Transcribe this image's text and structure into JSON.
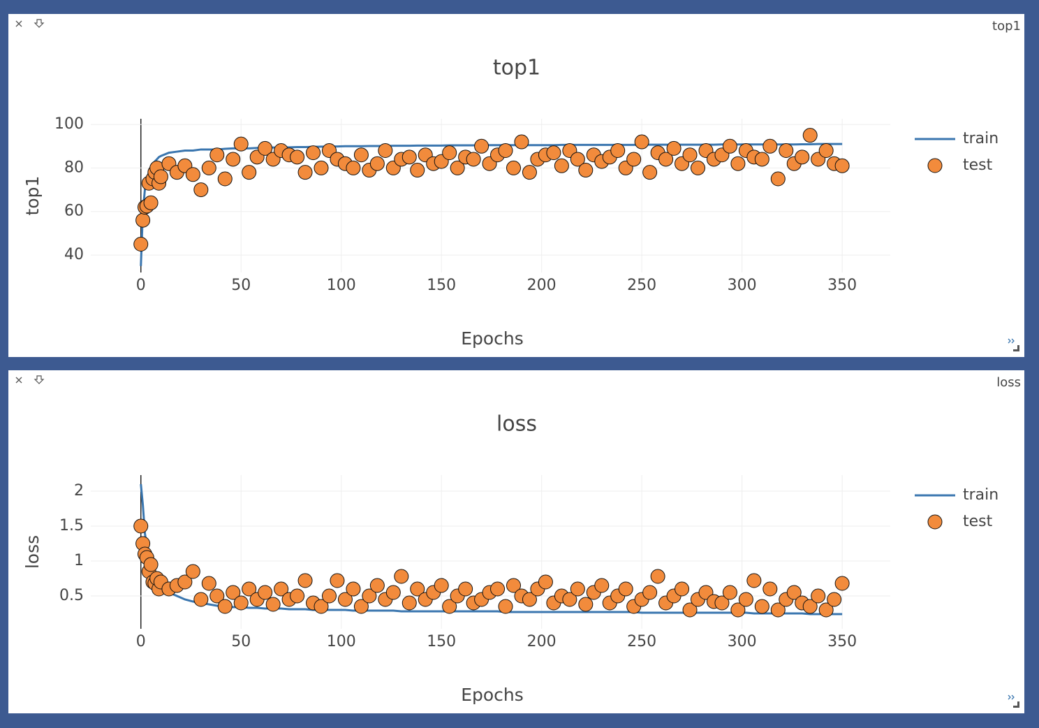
{
  "chart_data": [
    {
      "type": "line",
      "window_title": "top1",
      "title": "top1",
      "x_label": "Epochs",
      "y_label": "top1",
      "x": [
        0,
        1,
        2,
        3,
        4,
        5,
        6,
        7,
        8,
        9,
        10,
        14,
        18,
        22,
        26,
        30,
        34,
        38,
        42,
        46,
        50,
        54,
        58,
        62,
        66,
        70,
        74,
        78,
        82,
        86,
        90,
        94,
        98,
        102,
        106,
        110,
        114,
        118,
        122,
        126,
        130,
        134,
        138,
        142,
        146,
        150,
        154,
        158,
        162,
        166,
        170,
        174,
        178,
        182,
        186,
        190,
        194,
        198,
        202,
        206,
        210,
        214,
        218,
        222,
        226,
        230,
        234,
        238,
        242,
        246,
        250,
        254,
        258,
        262,
        266,
        270,
        274,
        278,
        282,
        286,
        290,
        294,
        298,
        302,
        306,
        310,
        314,
        318,
        322,
        326,
        330,
        334,
        338,
        342,
        346,
        350
      ],
      "series": [
        {
          "name": "train",
          "mode": "lines",
          "color": "#3a76af",
          "values": [
            35,
            60,
            70,
            75,
            78,
            80,
            82,
            83,
            84,
            85,
            85.5,
            87,
            87.5,
            88,
            88,
            88.5,
            88.5,
            88.5,
            88.8,
            89,
            89,
            89,
            89.2,
            89.3,
            89.4,
            89.5,
            89.5,
            89.6,
            89.6,
            89.7,
            89.8,
            89.8,
            89.9,
            90,
            90,
            90,
            90.1,
            90.1,
            90.1,
            90.2,
            90.2,
            90.2,
            90.3,
            90.3,
            90.3,
            90.3,
            90.4,
            90.4,
            90.4,
            90.4,
            90.5,
            90.5,
            90.5,
            90.5,
            90.5,
            90.5,
            90.5,
            90.5,
            90.5,
            90.5,
            90.6,
            90.6,
            90.6,
            90.6,
            90.6,
            90.6,
            90.6,
            90.6,
            90.6,
            90.6,
            90.7,
            90.7,
            90.7,
            90.7,
            90.7,
            90.7,
            90.7,
            90.7,
            90.7,
            90.7,
            90.8,
            90.8,
            90.8,
            90.8,
            90.8,
            90.8,
            90.8,
            90.8,
            90.8,
            90.8,
            90.9,
            90.9,
            91,
            91,
            91,
            91
          ]
        },
        {
          "name": "test",
          "mode": "markers",
          "color": "#f28b3c",
          "values": [
            45,
            56,
            62,
            62.5,
            73,
            64,
            75,
            78,
            80,
            73,
            76,
            82,
            78,
            81,
            77,
            70,
            80,
            86,
            75,
            84,
            91,
            78,
            85,
            89,
            84,
            88,
            86,
            85,
            78,
            87,
            80,
            88,
            84,
            82,
            80,
            86,
            79,
            82,
            88,
            80,
            84,
            85,
            79,
            86,
            82,
            83,
            87,
            80,
            85,
            84,
            90,
            82,
            86,
            88,
            80,
            92,
            78,
            84,
            86,
            87,
            81,
            88,
            84,
            79,
            86,
            83,
            85,
            88,
            80,
            84,
            92,
            78,
            87,
            84,
            89,
            82,
            86,
            80,
            88,
            84,
            86,
            90,
            82,
            88,
            85,
            84,
            90,
            75,
            88,
            82,
            85,
            95,
            84,
            88,
            82,
            81
          ]
        }
      ],
      "xlim": [
        -25,
        374
      ],
      "xticks": [
        0,
        50,
        100,
        150,
        200,
        250,
        300,
        350
      ],
      "ylim": [
        32,
        102.6
      ],
      "yticks": [
        40,
        60,
        80,
        100
      ],
      "grid": true
    },
    {
      "type": "line",
      "window_title": "loss",
      "title": "loss",
      "x_label": "Epochs",
      "y_label": "loss",
      "x": [
        0,
        1,
        2,
        3,
        4,
        5,
        6,
        7,
        8,
        9,
        10,
        14,
        18,
        22,
        26,
        30,
        34,
        38,
        42,
        46,
        50,
        54,
        58,
        62,
        66,
        70,
        74,
        78,
        82,
        86,
        90,
        94,
        98,
        102,
        106,
        110,
        114,
        118,
        122,
        126,
        130,
        134,
        138,
        142,
        146,
        150,
        154,
        158,
        162,
        166,
        170,
        174,
        178,
        182,
        186,
        190,
        194,
        198,
        202,
        206,
        210,
        214,
        218,
        222,
        226,
        230,
        234,
        238,
        242,
        246,
        250,
        254,
        258,
        262,
        266,
        270,
        274,
        278,
        282,
        286,
        290,
        294,
        298,
        302,
        306,
        310,
        314,
        318,
        322,
        326,
        330,
        334,
        338,
        342,
        346,
        350
      ],
      "series": [
        {
          "name": "train",
          "mode": "lines",
          "color": "#3a76af",
          "values": [
            2.1,
            1.8,
            1.4,
            1.2,
            1.05,
            0.95,
            0.85,
            0.78,
            0.72,
            0.68,
            0.65,
            0.55,
            0.5,
            0.45,
            0.42,
            0.4,
            0.38,
            0.36,
            0.35,
            0.34,
            0.34,
            0.33,
            0.33,
            0.32,
            0.32,
            0.32,
            0.31,
            0.31,
            0.31,
            0.3,
            0.3,
            0.3,
            0.3,
            0.3,
            0.29,
            0.29,
            0.29,
            0.29,
            0.29,
            0.29,
            0.28,
            0.28,
            0.28,
            0.28,
            0.28,
            0.28,
            0.28,
            0.28,
            0.28,
            0.28,
            0.28,
            0.28,
            0.28,
            0.27,
            0.27,
            0.27,
            0.27,
            0.27,
            0.27,
            0.27,
            0.27,
            0.27,
            0.27,
            0.27,
            0.27,
            0.27,
            0.27,
            0.27,
            0.27,
            0.27,
            0.26,
            0.26,
            0.26,
            0.26,
            0.26,
            0.26,
            0.26,
            0.26,
            0.26,
            0.26,
            0.26,
            0.26,
            0.26,
            0.26,
            0.25,
            0.25,
            0.25,
            0.25,
            0.25,
            0.25,
            0.25,
            0.24,
            0.24,
            0.24,
            0.24,
            0.24
          ]
        },
        {
          "name": "test",
          "mode": "markers",
          "color": "#f28b3c",
          "values": [
            1.5,
            1.25,
            1.1,
            1.05,
            0.85,
            0.95,
            0.7,
            0.68,
            0.75,
            0.6,
            0.7,
            0.6,
            0.65,
            0.7,
            0.85,
            0.45,
            0.68,
            0.5,
            0.35,
            0.55,
            0.4,
            0.6,
            0.45,
            0.55,
            0.38,
            0.6,
            0.45,
            0.5,
            0.72,
            0.4,
            0.35,
            0.5,
            0.72,
            0.45,
            0.6,
            0.35,
            0.5,
            0.65,
            0.45,
            0.55,
            0.78,
            0.4,
            0.6,
            0.45,
            0.55,
            0.65,
            0.35,
            0.5,
            0.6,
            0.4,
            0.45,
            0.55,
            0.6,
            0.35,
            0.65,
            0.5,
            0.45,
            0.6,
            0.7,
            0.4,
            0.5,
            0.45,
            0.6,
            0.38,
            0.55,
            0.65,
            0.4,
            0.5,
            0.6,
            0.35,
            0.45,
            0.55,
            0.78,
            0.4,
            0.5,
            0.6,
            0.3,
            0.45,
            0.55,
            0.42,
            0.4,
            0.55,
            0.3,
            0.45,
            0.72,
            0.35,
            0.6,
            0.3,
            0.45,
            0.55,
            0.4,
            0.35,
            0.5,
            0.3,
            0.45,
            0.68
          ]
        }
      ],
      "xlim": [
        -25,
        374
      ],
      "xticks": [
        0,
        50,
        100,
        150,
        200,
        250,
        300,
        350
      ],
      "ylim": [
        0.03,
        2.23
      ],
      "yticks": [
        0.5,
        1,
        1.5,
        2
      ],
      "grid": true
    }
  ]
}
